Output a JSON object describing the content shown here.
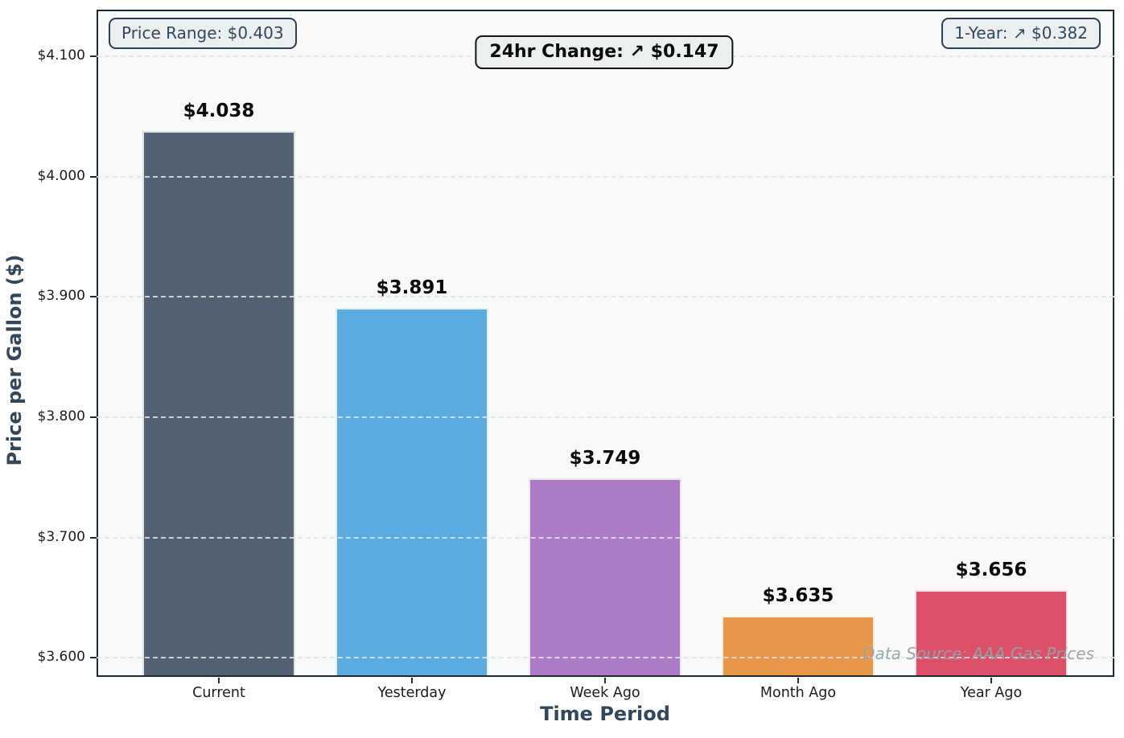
{
  "chart_data": {
    "type": "bar",
    "categories": [
      "Current",
      "Yesterday",
      "Week Ago",
      "Month Ago",
      "Year Ago"
    ],
    "values": [
      4.038,
      3.891,
      3.749,
      3.635,
      3.656
    ],
    "bar_labels": [
      "$4.038",
      "$3.891",
      "$3.749",
      "$3.635",
      "$3.656"
    ],
    "bar_colors": [
      "#526273",
      "#5aabe0",
      "#ad7ac5",
      "#ea974e",
      "#dd5168"
    ],
    "xlabel": "Time Period",
    "ylabel": "Price per Gallon ($)",
    "ylim": [
      3.584,
      4.139
    ],
    "yticks": [
      3.6,
      3.7,
      3.8,
      3.9,
      4.0,
      4.1
    ],
    "ytick_labels": [
      "$3.600",
      "$3.700",
      "$3.800",
      "$3.900",
      "$4.000",
      "$4.100"
    ],
    "grid": "horizontal-dashed",
    "legend": "none",
    "title": ""
  },
  "annotations": {
    "price_range": "Price Range: $0.403",
    "change_24hr": "24hr Change: ↗ $0.147",
    "one_year": "1-Year: ↗ $0.382"
  },
  "watermark": "Data Source: AAA Gas Prices",
  "colors": {
    "axis_title": "#33475b",
    "plot_background": "#f8f9f9",
    "figure_background": "#ffffff",
    "spine": "#1c2833",
    "annotation_background": "#ebeff0"
  }
}
